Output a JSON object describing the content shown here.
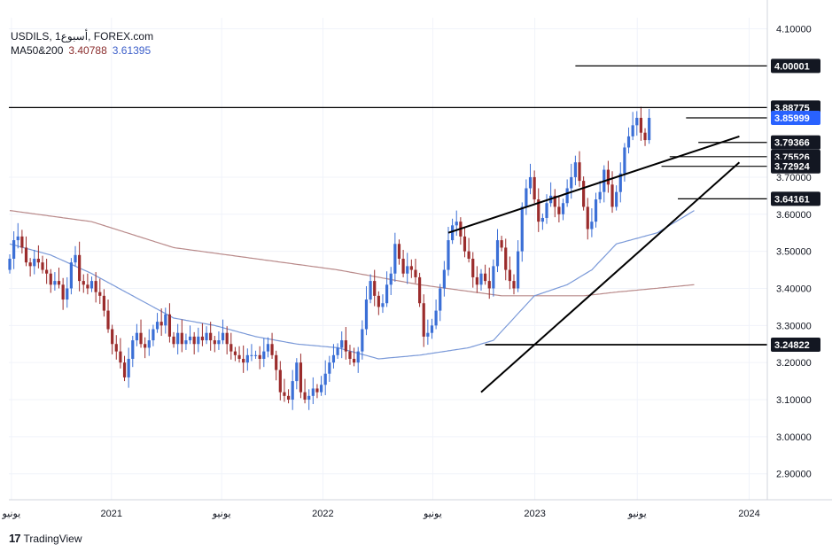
{
  "legend": {
    "symbol_line": "USDILS, 1أسبوع, FOREX.com",
    "ma_label": "MA50&200",
    "ma_value_1": "3.40788",
    "ma_value_2": "3.61395"
  },
  "brand": {
    "logo": "17",
    "name": "TradingView"
  },
  "colors": {
    "up": "#3b6fd6",
    "down": "#9b2c2c",
    "ma50": "#7a99d8",
    "ma200": "#b98a8a",
    "line": "#000000"
  },
  "chart_data": {
    "type": "candlestick",
    "symbol": "USDILS",
    "timeframe": "1W",
    "ylim": [
      2.83,
      4.13
    ],
    "y_ticks": [
      "2.90000",
      "3.00000",
      "3.10000",
      "3.20000",
      "3.30000",
      "3.40000",
      "3.50000",
      "3.60000",
      "3.70000",
      "4.10000"
    ],
    "x_labels": [
      {
        "t": 0.4,
        "label": "يونيو"
      },
      {
        "t": 24.8,
        "label": "2021"
      },
      {
        "t": 51.7,
        "label": "يونيو"
      },
      {
        "t": 76.4,
        "label": "2022"
      },
      {
        "t": 103.2,
        "label": "يونيو"
      },
      {
        "t": 128.1,
        "label": "2023"
      },
      {
        "t": 153.1,
        "label": "يونيو"
      },
      {
        "t": 180.4,
        "label": "2024"
      }
    ],
    "series_close": [
      3.48,
      3.53,
      3.54,
      3.51,
      3.47,
      3.46,
      3.48,
      3.47,
      3.45,
      3.44,
      3.41,
      3.42,
      3.41,
      3.37,
      3.4,
      3.47,
      3.49,
      3.42,
      3.41,
      3.4,
      3.42,
      3.39,
      3.38,
      3.34,
      3.29,
      3.25,
      3.23,
      3.2,
      3.16,
      3.21,
      3.26,
      3.28,
      3.25,
      3.24,
      3.26,
      3.29,
      3.31,
      3.3,
      3.33,
      3.27,
      3.25,
      3.28,
      3.25,
      3.26,
      3.27,
      3.25,
      3.27,
      3.26,
      3.28,
      3.26,
      3.25,
      3.26,
      3.28,
      3.25,
      3.23,
      3.22,
      3.21,
      3.2,
      3.22,
      3.22,
      3.22,
      3.21,
      3.23,
      3.25,
      3.22,
      3.18,
      3.12,
      3.11,
      3.1,
      3.15,
      3.2,
      3.12,
      3.1,
      3.11,
      3.13,
      3.12,
      3.14,
      3.17,
      3.2,
      3.22,
      3.24,
      3.26,
      3.23,
      3.21,
      3.2,
      3.23,
      3.29,
      3.37,
      3.42,
      3.38,
      3.35,
      3.36,
      3.41,
      3.44,
      3.52,
      3.48,
      3.44,
      3.46,
      3.45,
      3.43,
      3.36,
      3.27,
      3.28,
      3.3,
      3.34,
      3.4,
      3.45,
      3.53,
      3.57,
      3.58,
      3.54,
      3.5,
      3.48,
      3.43,
      3.41,
      3.44,
      3.42,
      3.4,
      3.46,
      3.53,
      3.51,
      3.45,
      3.42,
      3.4,
      3.5,
      3.62,
      3.67,
      3.7,
      3.64,
      3.58,
      3.59,
      3.63,
      3.65,
      3.62,
      3.6,
      3.63,
      3.67,
      3.7,
      3.74,
      3.69,
      3.62,
      3.56,
      3.58,
      3.64,
      3.66,
      3.72,
      3.68,
      3.62,
      3.66,
      3.71,
      3.78,
      3.81,
      3.84,
      3.86,
      3.82,
      3.8,
      3.86
    ],
    "ma200_anchors": [
      [
        0,
        3.61
      ],
      [
        20,
        3.58
      ],
      [
        40,
        3.51
      ],
      [
        60,
        3.48
      ],
      [
        80,
        3.45
      ],
      [
        100,
        3.41
      ],
      [
        120,
        3.38
      ],
      [
        130,
        3.38
      ],
      [
        140,
        3.38
      ],
      [
        148,
        3.39
      ],
      [
        167,
        3.41
      ]
    ],
    "ma50_anchors": [
      [
        0,
        3.52
      ],
      [
        10,
        3.49
      ],
      [
        20,
        3.44
      ],
      [
        30,
        3.38
      ],
      [
        40,
        3.32
      ],
      [
        50,
        3.3
      ],
      [
        60,
        3.27
      ],
      [
        70,
        3.25
      ],
      [
        80,
        3.24
      ],
      [
        90,
        3.21
      ],
      [
        100,
        3.22
      ],
      [
        112,
        3.24
      ],
      [
        118,
        3.26
      ],
      [
        128,
        3.38
      ],
      [
        136,
        3.41
      ],
      [
        142,
        3.45
      ],
      [
        148,
        3.52
      ],
      [
        158,
        3.55
      ],
      [
        167,
        3.61
      ]
    ],
    "trendlines": [
      {
        "name": "upper-wedge-line",
        "from": [
          107,
          3.55
        ],
        "to": [
          178,
          3.81
        ]
      },
      {
        "name": "lower-wedge-line",
        "from": [
          115,
          3.12
        ],
        "to": [
          178,
          3.74
        ]
      }
    ],
    "levels": [
      {
        "name": "level-4-00001",
        "value": 4.00001,
        "label": "4.00001",
        "t_start": 138,
        "style": "black"
      },
      {
        "name": "level-3-88775",
        "value": 3.88775,
        "label": "3.88775",
        "t_start": -2,
        "style": "black"
      },
      {
        "name": "level-3-85999",
        "value": 3.85999,
        "label": "3.85999",
        "t_start": 165,
        "style": "blue"
      },
      {
        "name": "level-3-79366",
        "value": 3.79366,
        "label": "3.79366",
        "t_start": 168,
        "style": "black"
      },
      {
        "name": "level-3-75526",
        "value": 3.75526,
        "label": "3.75526",
        "t_start": 161,
        "style": "black"
      },
      {
        "name": "level-3-72924",
        "value": 3.72924,
        "label": "3.72924",
        "t_start": 159,
        "style": "black"
      },
      {
        "name": "level-3-64161",
        "value": 3.64161,
        "label": "3.64161",
        "t_start": 163,
        "style": "black"
      },
      {
        "name": "level-3-24822",
        "value": 3.24822,
        "label": "3.24822",
        "t_start": 116,
        "style": "black"
      }
    ]
  }
}
